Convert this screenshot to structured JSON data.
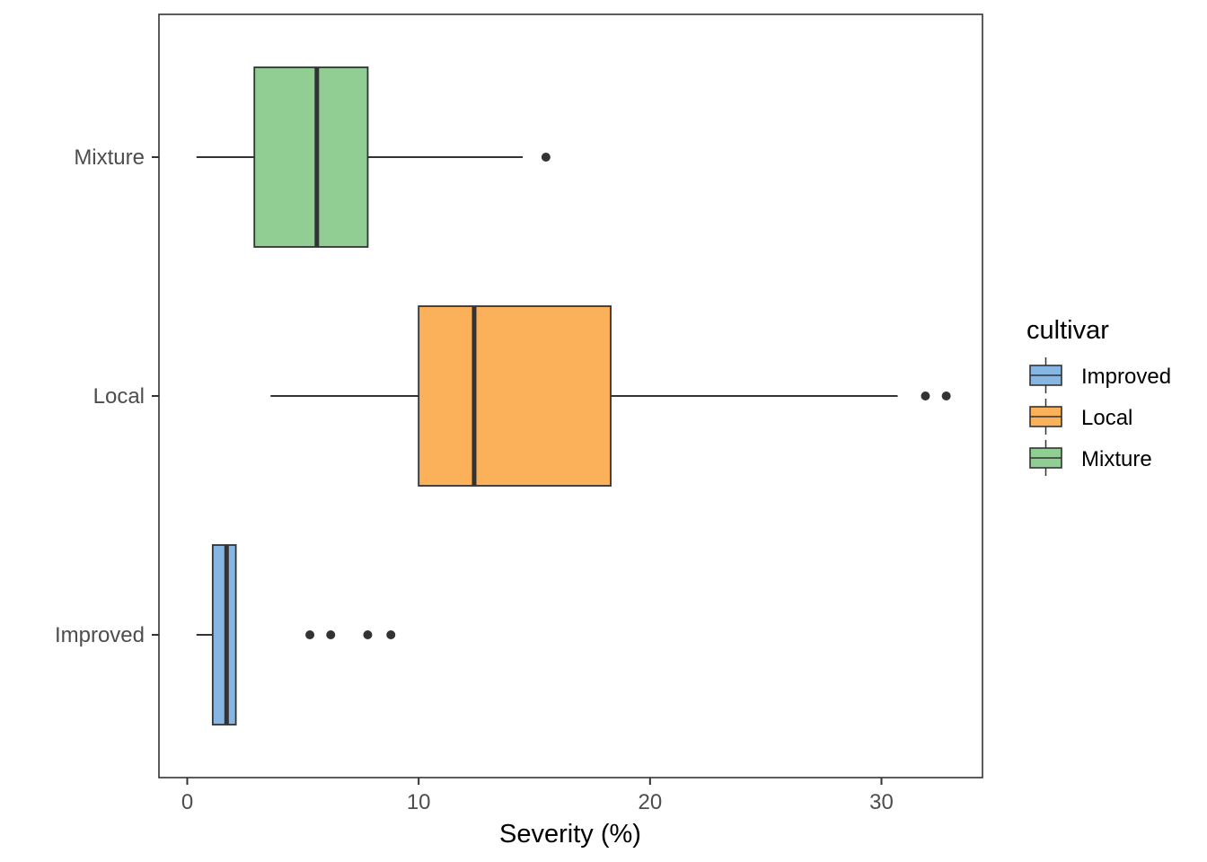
{
  "chart_data": {
    "type": "boxplot",
    "orientation": "horizontal",
    "xlabel": "Severity (%)",
    "ylabel": "",
    "xlim": [
      -1.2,
      34.3
    ],
    "x_ticks": [
      0,
      10,
      20,
      30
    ],
    "grid": false,
    "legend": {
      "title": "cultivar",
      "placement": "right"
    },
    "categories": [
      "Improved",
      "Local",
      "Mixture"
    ],
    "series": [
      {
        "name": "Improved",
        "color": "#85B6E4",
        "whisker_low": 0.4,
        "q1": 1.1,
        "median": 1.7,
        "q3": 2.1,
        "whisker_high": 2.1,
        "outliers": [
          5.3,
          6.2,
          7.8,
          8.8
        ]
      },
      {
        "name": "Local",
        "color": "#FBB05A",
        "whisker_low": 3.6,
        "q1": 10.0,
        "median": 12.4,
        "q3": 18.3,
        "whisker_high": 30.7,
        "outliers": [
          31.9,
          32.8
        ]
      },
      {
        "name": "Mixture",
        "color": "#90CE93",
        "whisker_low": 0.4,
        "q1": 2.9,
        "median": 5.6,
        "q3": 7.8,
        "whisker_high": 14.5,
        "outliers": [
          15.5
        ]
      }
    ]
  }
}
